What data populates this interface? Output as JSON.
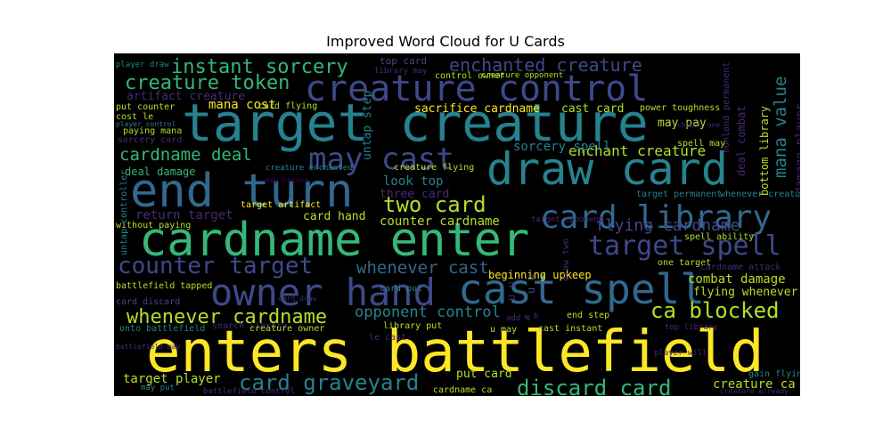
{
  "title": "Improved Word Cloud for U Cards",
  "palette": {
    "yellow": "#fde725",
    "lime": "#b5de2b",
    "green": "#35b779",
    "teal": "#26828e",
    "blue": "#31688e",
    "indigo": "#3e4989",
    "purple": "#482878",
    "dark": "#440154",
    "bg": "#000000"
  },
  "words": [
    {
      "text": "enters battlefield",
      "color": "yellow"
    },
    {
      "text": "cardname enter",
      "color": "green"
    },
    {
      "text": "target creature",
      "color": "teal"
    },
    {
      "text": "draw card",
      "color": "teal"
    },
    {
      "text": "end turn",
      "color": "blue"
    },
    {
      "text": "creature control",
      "color": "indigo"
    },
    {
      "text": "owner hand",
      "color": "indigo"
    },
    {
      "text": "cast spell",
      "color": "blue"
    },
    {
      "text": "card library",
      "color": "blue"
    },
    {
      "text": "target spell",
      "color": "indigo"
    },
    {
      "text": "counter target",
      "color": "indigo"
    },
    {
      "text": "may cast",
      "color": "indigo"
    },
    {
      "text": "discard card",
      "color": "green"
    },
    {
      "text": "card graveyard",
      "color": "teal"
    },
    {
      "text": "whenever cardname",
      "color": "lime"
    },
    {
      "text": "instant sorcery",
      "color": "green"
    },
    {
      "text": "creature token",
      "color": "green"
    },
    {
      "text": "enchanted creature",
      "color": "indigo"
    },
    {
      "text": "ca blocked",
      "color": "lime"
    },
    {
      "text": "cardname deal",
      "color": "green"
    },
    {
      "text": "two card",
      "color": "lime"
    },
    {
      "text": "mana value",
      "color": "teal"
    },
    {
      "text": "flying cardname",
      "color": "indigo"
    },
    {
      "text": "whenever cast",
      "color": "blue"
    },
    {
      "text": "enchant creature",
      "color": "lime"
    },
    {
      "text": "opponent control",
      "color": "teal"
    },
    {
      "text": "artifact creature",
      "color": "purple"
    },
    {
      "text": "mana cost",
      "color": "yellow"
    },
    {
      "text": "look top",
      "color": "teal"
    },
    {
      "text": "sorcery spell",
      "color": "teal"
    },
    {
      "text": "card hand",
      "color": "lime"
    },
    {
      "text": "counter cardname",
      "color": "lime"
    },
    {
      "text": "return target",
      "color": "purple"
    },
    {
      "text": "deal damage",
      "color": "green"
    },
    {
      "text": "combat damage",
      "color": "lime"
    },
    {
      "text": "target player",
      "color": "lime"
    },
    {
      "text": "put card",
      "color": "lime"
    },
    {
      "text": "creature ca",
      "color": "lime"
    },
    {
      "text": "damage player",
      "color": "purple"
    },
    {
      "text": "deal combat",
      "color": "purple"
    },
    {
      "text": "bottom library",
      "color": "lime"
    },
    {
      "text": "cast card",
      "color": "lime"
    },
    {
      "text": "sacrifice cardname",
      "color": "yellow"
    },
    {
      "text": "untap step",
      "color": "teal"
    },
    {
      "text": "may pay",
      "color": "lime"
    },
    {
      "text": "beginning upkeep",
      "color": "yellow"
    },
    {
      "text": "flying whenever",
      "color": "lime"
    },
    {
      "text": "three card",
      "color": "purple"
    },
    {
      "text": "power toughness",
      "color": "lime"
    },
    {
      "text": "nonland permanent",
      "color": "purple"
    },
    {
      "text": "card flying",
      "color": "lime"
    },
    {
      "text": "put counter",
      "color": "lime"
    },
    {
      "text": "paying mana",
      "color": "lime"
    },
    {
      "text": "sorcery card",
      "color": "purple"
    },
    {
      "text": "cost le",
      "color": "lime"
    },
    {
      "text": "player control",
      "color": "teal"
    },
    {
      "text": "top card",
      "color": "indigo"
    },
    {
      "text": "library may",
      "color": "purple"
    },
    {
      "text": "control owner",
      "color": "lime"
    },
    {
      "text": "creature opponent",
      "color": "lime"
    },
    {
      "text": "player draw",
      "color": "teal"
    },
    {
      "text": "creature enchanted",
      "color": "teal"
    },
    {
      "text": "creature flying",
      "color": "lime"
    },
    {
      "text": "target artifact",
      "color": "yellow"
    },
    {
      "text": "target permanent",
      "color": "teal"
    },
    {
      "text": "whenever creature",
      "color": "teal"
    },
    {
      "text": "spell ability",
      "color": "lime"
    },
    {
      "text": "spell may",
      "color": "lime"
    },
    {
      "text": "choose one",
      "color": "purple"
    },
    {
      "text": "one target",
      "color": "lime"
    },
    {
      "text": "cardname attack",
      "color": "purple"
    },
    {
      "text": "target opponent",
      "color": "purple"
    },
    {
      "text": "without paying",
      "color": "lime"
    },
    {
      "text": "untap controller",
      "color": "teal"
    },
    {
      "text": "battlefield tapped",
      "color": "lime"
    },
    {
      "text": "card discard",
      "color": "indigo"
    },
    {
      "text": "card draw",
      "color": "purple"
    },
    {
      "text": "card put",
      "color": "teal"
    },
    {
      "text": "onto battlefield",
      "color": "teal"
    },
    {
      "text": "search library",
      "color": "purple"
    },
    {
      "text": "creature owner",
      "color": "lime"
    },
    {
      "text": "library put",
      "color": "lime"
    },
    {
      "text": "u may",
      "color": "lime"
    },
    {
      "text": "cast instant",
      "color": "lime"
    },
    {
      "text": "end step",
      "color": "lime"
    },
    {
      "text": "draw two",
      "color": "purple"
    },
    {
      "text": "add u",
      "color": "purple"
    },
    {
      "text": "u u",
      "color": "indigo"
    },
    {
      "text": "u u",
      "color": "purple"
    },
    {
      "text": "u b",
      "color": "purple"
    },
    {
      "text": "le cast",
      "color": "purple"
    },
    {
      "text": "top library",
      "color": "purple"
    },
    {
      "text": "player will",
      "color": "purple"
    },
    {
      "text": "gain flying",
      "color": "teal"
    },
    {
      "text": "may put",
      "color": "teal"
    },
    {
      "text": "battlefield control",
      "color": "purple"
    },
    {
      "text": "cardname ca",
      "color": "lime"
    },
    {
      "text": "creature already",
      "color": "purple"
    },
    {
      "text": "may choose",
      "color": "dark"
    },
    {
      "text": "battlefield may",
      "color": "purple"
    }
  ]
}
